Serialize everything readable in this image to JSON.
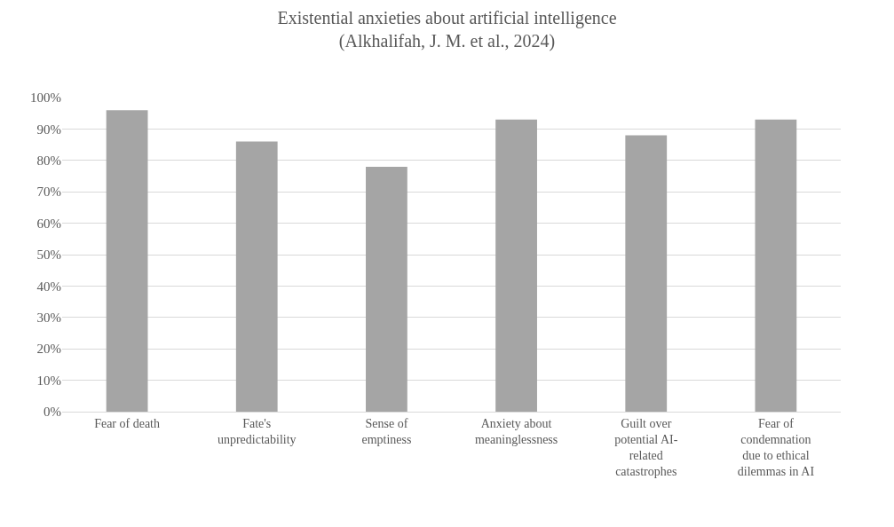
{
  "chart_data": {
    "type": "bar",
    "title": "Existential anxieties about artificial intelligence",
    "subtitle": "(Alkhalifah, J. M. et al., 2024)",
    "categories": [
      "Fear of death",
      "Fate's unpredictability",
      "Sense of emptiness",
      "Anxiety about meaninglessness",
      "Guilt over potential AI-related catastrophes",
      "Fear of condemnation due to ethical dilemmas in AI"
    ],
    "values": [
      96,
      86,
      78,
      93,
      88,
      93
    ],
    "color": "#a5a5a5",
    "ylim": [
      0,
      100
    ],
    "yticks": [
      {
        "value": 0,
        "label": "0%"
      },
      {
        "value": 10,
        "label": "10%"
      },
      {
        "value": 20,
        "label": "20%"
      },
      {
        "value": 30,
        "label": "30%"
      },
      {
        "value": 40,
        "label": "40%"
      },
      {
        "value": 50,
        "label": "50%"
      },
      {
        "value": 60,
        "label": "60%"
      },
      {
        "value": 70,
        "label": "70%"
      },
      {
        "value": 80,
        "label": "80%"
      },
      {
        "value": 90,
        "label": "90%"
      },
      {
        "value": 100,
        "label": "100%"
      }
    ],
    "grid": "y"
  }
}
